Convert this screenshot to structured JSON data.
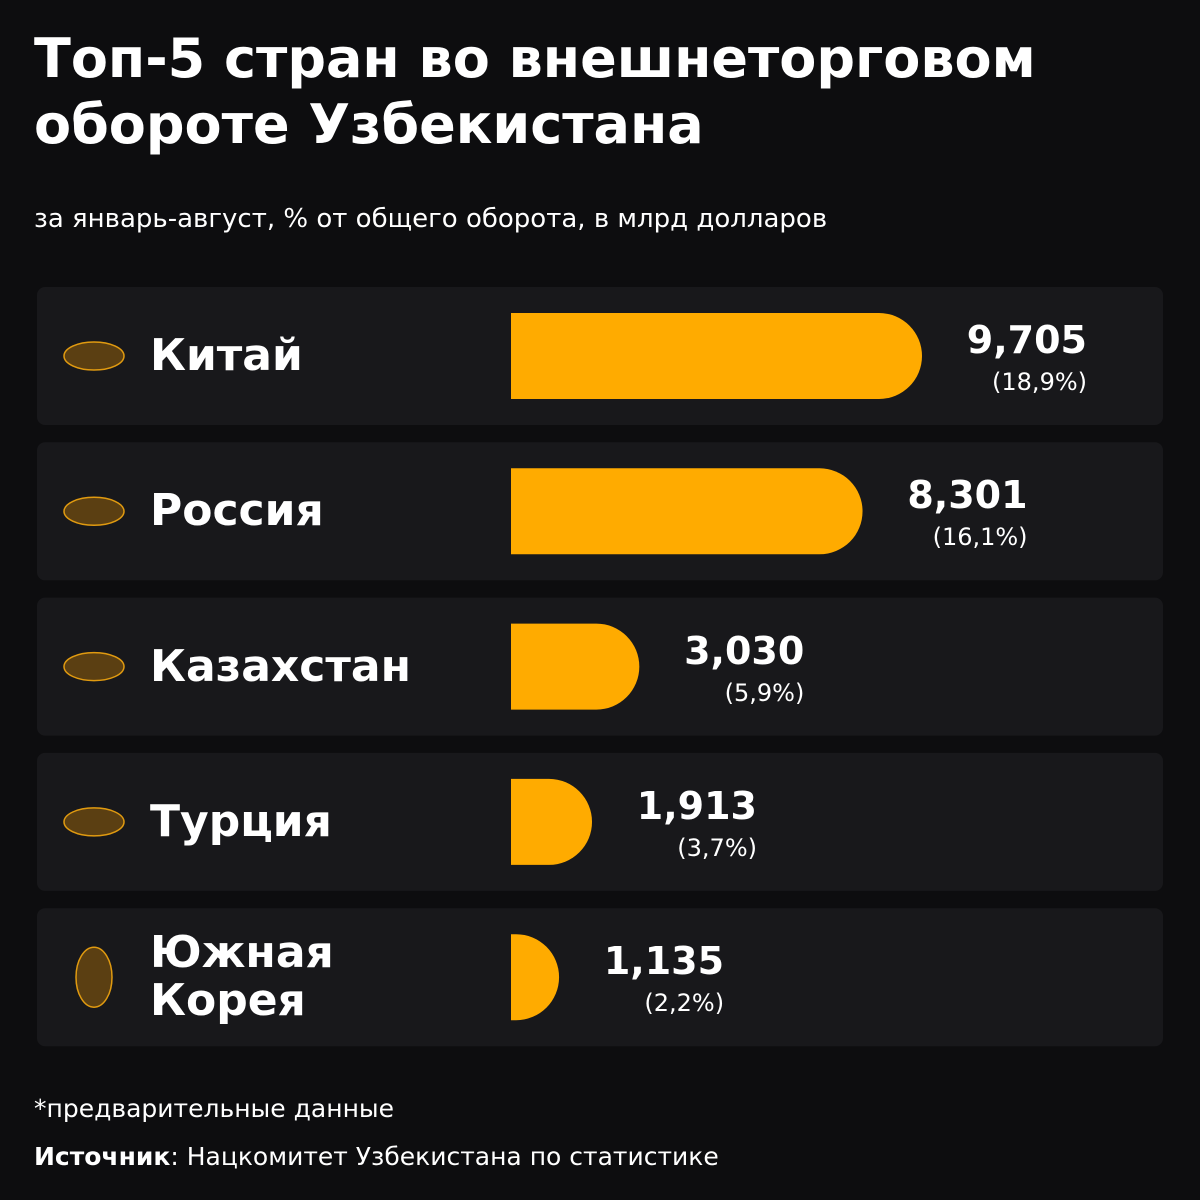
{
  "chart_data": {
    "type": "bar",
    "title": "Топ-5 стран во внешнеторговом обороте Узбекистана",
    "subtitle": "за январь-август, % от общего оборота, в млрд долларов",
    "categories": [
      "Китай",
      "Россия",
      "Казахстан",
      "Турция",
      "Южная Корея"
    ],
    "values": [
      9.705,
      8.301,
      3.03,
      1.913,
      1.135
    ],
    "value_labels": [
      "9,705",
      "8,301",
      "3,030",
      "1,913",
      "1,135"
    ],
    "shares": [
      18.9,
      16.1,
      5.9,
      3.7,
      2.2
    ],
    "share_labels": [
      "(18,9%)",
      "(16,1%)",
      "(5,9%)",
      "(3,7%)",
      "(2,2%)"
    ],
    "color": "#ffab00",
    "note": "*предварительные данные",
    "source_label": "Источник",
    "source": ": Нацкомитет Узбекистана по статистике"
  }
}
